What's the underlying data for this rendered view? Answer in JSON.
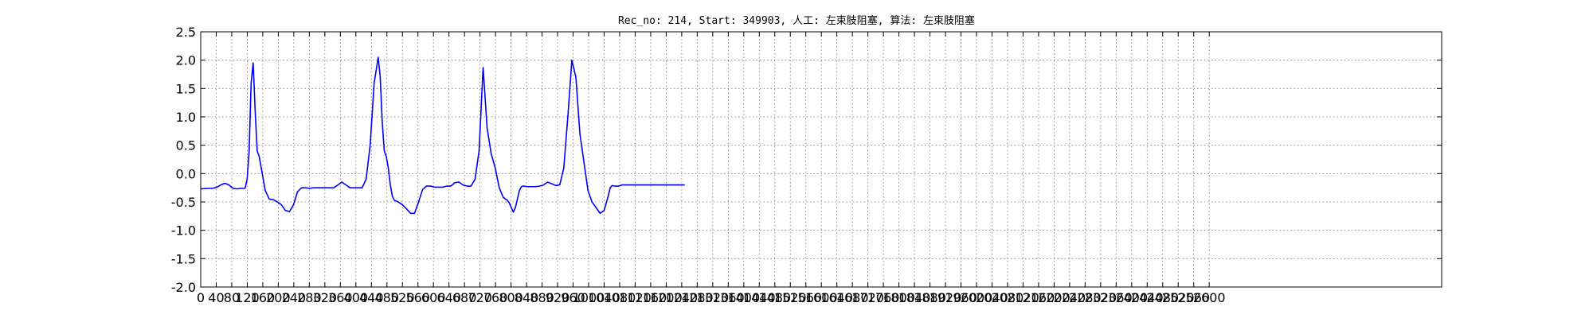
{
  "chart_data": {
    "type": "line",
    "title": "Rec_no: 214, Start: 349903, 人工: 左束肢阻塞, 算法: 左束肢阻塞",
    "xlabel": "",
    "ylabel": "",
    "xlim": [
      0,
      2000
    ],
    "ylim": [
      -2.0,
      2.5
    ],
    "grid": true,
    "yticks": [
      "2.5",
      "2.0",
      "1.5",
      "1.0",
      "0.5",
      "0.0",
      "-0.5",
      "-1.0",
      "-1.5",
      "-2.0"
    ],
    "xticks": [
      "0",
      "40",
      "80",
      "120",
      "160",
      "200",
      "240",
      "280",
      "320",
      "360",
      "400",
      "440",
      "480",
      "520",
      "560",
      "600",
      "640",
      "680",
      "720",
      "760",
      "800",
      "840",
      "880",
      "920",
      "960",
      "1000",
      "1040",
      "1080",
      "1120",
      "1160",
      "1200",
      "1240",
      "1280",
      "1320",
      "1360",
      "1400",
      "1440",
      "1480",
      "1520",
      "1560",
      "1600",
      "1640",
      "1680",
      "1720",
      "1760",
      "1800",
      "1840",
      "1880",
      "1920",
      "1960",
      "2000",
      "2040",
      "2080",
      "2120",
      "2160",
      "2200",
      "2240",
      "2280",
      "2320",
      "2360",
      "2400",
      "2440",
      "2480",
      "2520",
      "2560",
      "2600"
    ],
    "series": [
      {
        "color": "#0000ff",
        "x": [
          0,
          20,
          30,
          40,
          50,
          60,
          70,
          80,
          90,
          100,
          110,
          115,
          120,
          125,
          130,
          135,
          140,
          145,
          150,
          160,
          170,
          180,
          190,
          200,
          210,
          220,
          230,
          240,
          250,
          260,
          270,
          280,
          290,
          300,
          310,
          320,
          330,
          340,
          350,
          360,
          370,
          380,
          390,
          400,
          410,
          420,
          430,
          440,
          445,
          450,
          455,
          460,
          465,
          470,
          475,
          480,
          490,
          500,
          510,
          520,
          530,
          540,
          550,
          560,
          570,
          580,
          590,
          600,
          610,
          620,
          630,
          640,
          650,
          660,
          670,
          680,
          690,
          700,
          710,
          720,
          730,
          740,
          750,
          760,
          765,
          770,
          775,
          780,
          785,
          790,
          795,
          800,
          810,
          820,
          830,
          840,
          850,
          860,
          870,
          880,
          890,
          900,
          910,
          920,
          930,
          940,
          950,
          960,
          970,
          980,
          990,
          1000,
          1010,
          1015,
          1020,
          1025,
          1030,
          1035,
          1040,
          1045,
          1050,
          1060,
          1070,
          1080,
          1090,
          1100,
          1110,
          1120,
          1130,
          1140,
          1150,
          1160,
          1170,
          1180,
          1190,
          1200
        ],
        "y": [
          -0.27,
          -0.26,
          -0.26,
          -0.24,
          -0.2,
          -0.17,
          -0.2,
          -0.26,
          -0.27,
          -0.26,
          -0.26,
          -0.1,
          0.4,
          1.6,
          1.95,
          1.1,
          0.4,
          0.3,
          0.1,
          -0.3,
          -0.45,
          -0.46,
          -0.5,
          -0.55,
          -0.65,
          -0.67,
          -0.55,
          -0.32,
          -0.25,
          -0.25,
          -0.26,
          -0.25,
          -0.25,
          -0.25,
          -0.25,
          -0.25,
          -0.25,
          -0.2,
          -0.15,
          -0.2,
          -0.25,
          -0.25,
          -0.25,
          -0.25,
          -0.1,
          0.5,
          1.6,
          2.05,
          1.7,
          0.9,
          0.4,
          0.3,
          0.1,
          -0.2,
          -0.4,
          -0.47,
          -0.5,
          -0.55,
          -0.62,
          -0.7,
          -0.7,
          -0.5,
          -0.28,
          -0.22,
          -0.22,
          -0.24,
          -0.24,
          -0.24,
          -0.22,
          -0.22,
          -0.16,
          -0.15,
          -0.2,
          -0.22,
          -0.22,
          -0.1,
          0.4,
          1.87,
          0.8,
          0.35,
          0.1,
          -0.25,
          -0.42,
          -0.47,
          -0.52,
          -0.6,
          -0.68,
          -0.6,
          -0.45,
          -0.3,
          -0.23,
          -0.22,
          -0.23,
          -0.23,
          -0.23,
          -0.22,
          -0.2,
          -0.15,
          -0.18,
          -0.21,
          -0.2,
          0.1,
          1.0,
          2.0,
          1.7,
          0.7,
          0.2,
          -0.3,
          -0.5,
          -0.6,
          -0.7,
          -0.65,
          -0.4,
          -0.25,
          -0.21,
          -0.22,
          -0.22,
          -0.22,
          -0.21,
          -0.2,
          -0.2,
          -0.2,
          -0.2,
          -0.2,
          -0.2,
          -0.2,
          -0.2,
          -0.2,
          -0.2,
          -0.2,
          -0.2,
          -0.2,
          -0.2,
          -0.2,
          -0.2,
          -0.2
        ]
      }
    ]
  }
}
